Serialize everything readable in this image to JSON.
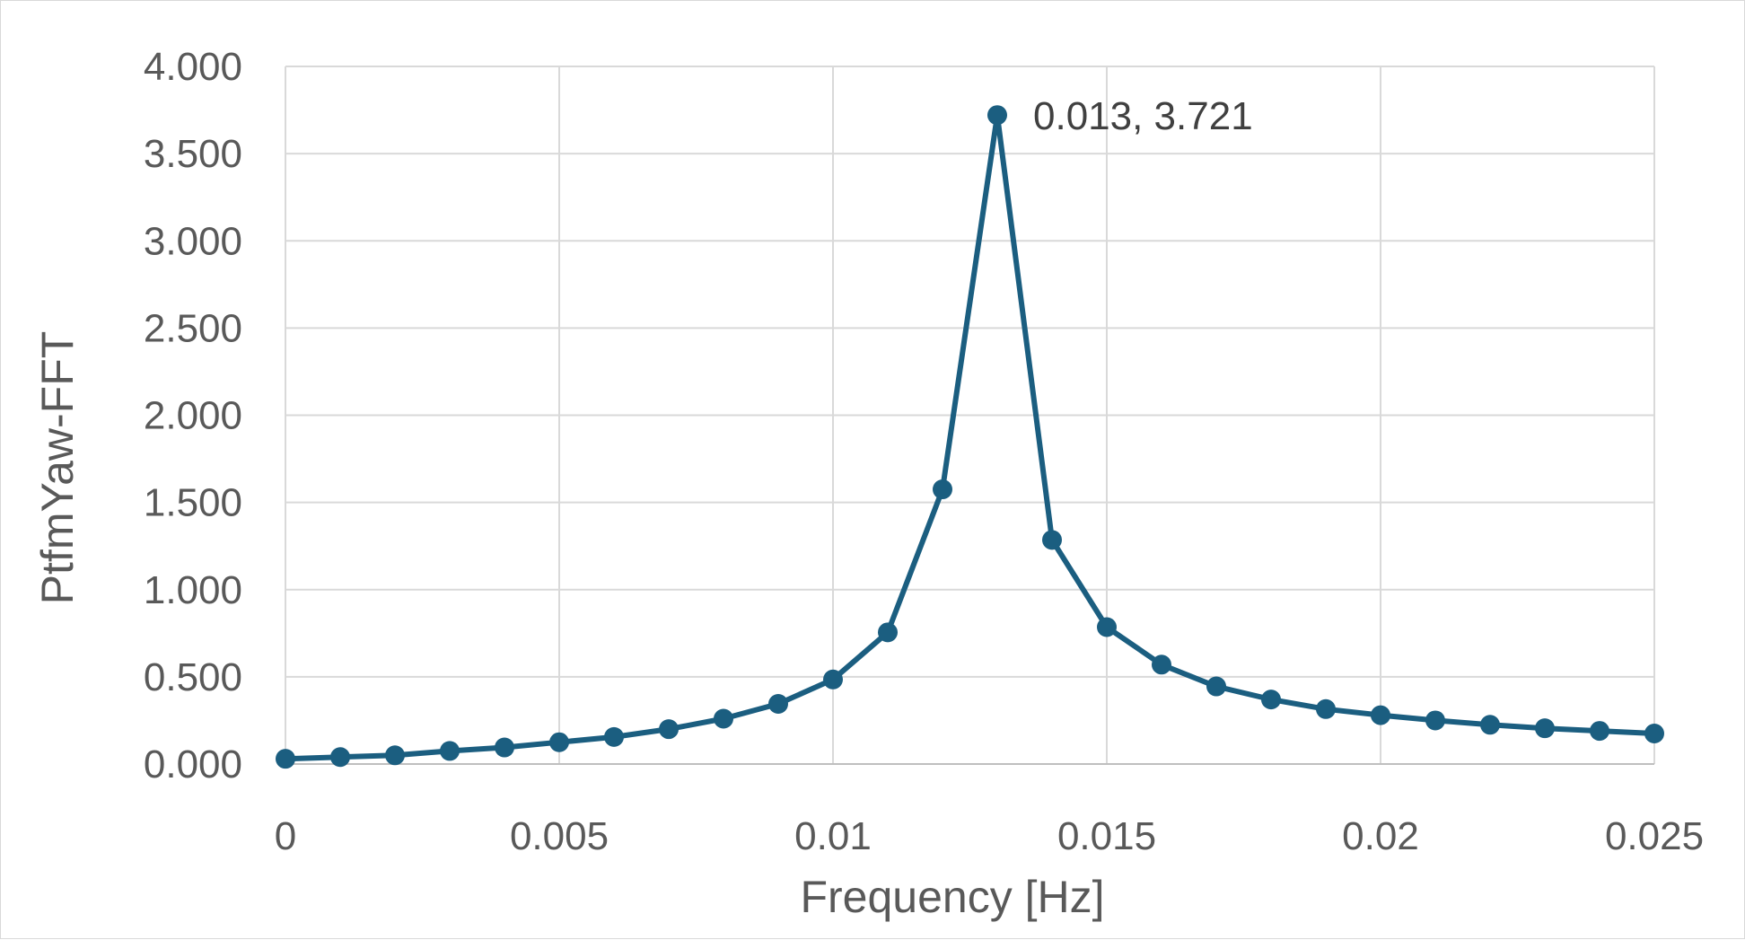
{
  "chart_data": {
    "type": "line",
    "title": "",
    "xlabel": "Frequency [Hz]",
    "ylabel": "PtfmYaw-FFT",
    "xlim": [
      0,
      0.025
    ],
    "ylim": [
      0,
      4
    ],
    "x_ticks": [
      "0",
      "0.005",
      "0.01",
      "0.015",
      "0.02",
      "0.025"
    ],
    "y_ticks": [
      "0.000",
      "0.500",
      "1.000",
      "1.500",
      "2.000",
      "2.500",
      "3.000",
      "3.500",
      "4.000"
    ],
    "grid": true,
    "legend": "none",
    "line_color": "#1b5e80",
    "grid_color": "#d9d9d9",
    "series": [
      {
        "x": [
          0,
          0.001,
          0.002,
          0.003,
          0.004,
          0.005,
          0.006,
          0.007,
          0.008,
          0.009,
          0.01,
          0.011,
          0.012,
          0.013,
          0.014,
          0.015,
          0.016,
          0.017,
          0.018,
          0.019,
          0.02,
          0.021,
          0.022,
          0.023,
          0.024,
          0.025
        ],
        "y": [
          0.03,
          0.04,
          0.05,
          0.075,
          0.095,
          0.125,
          0.155,
          0.2,
          0.26,
          0.345,
          0.485,
          0.755,
          1.575,
          3.721,
          1.285,
          0.785,
          0.57,
          0.445,
          0.37,
          0.315,
          0.28,
          0.25,
          0.225,
          0.205,
          0.19,
          0.175
        ]
      }
    ],
    "annotations": [
      {
        "text": "0.013, 3.721",
        "x": 0.013,
        "y": 3.721
      }
    ]
  }
}
